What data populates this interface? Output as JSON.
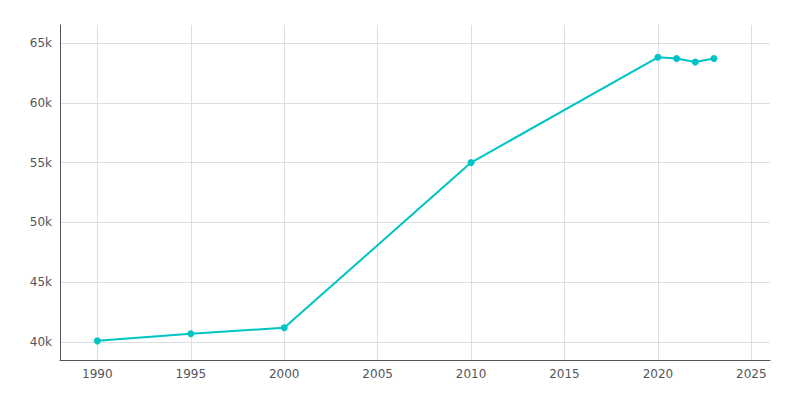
{
  "chart_data": {
    "type": "line",
    "x": [
      1990,
      1995,
      2000,
      2010,
      2020,
      2021,
      2022,
      2023
    ],
    "values": [
      40100,
      40700,
      41200,
      55000,
      63800,
      63700,
      63400,
      63700
    ],
    "color": "#00c4c4",
    "marker": "circle",
    "xlim": [
      1988,
      2026
    ],
    "xticks": [
      1990,
      1995,
      2000,
      2005,
      2010,
      2015,
      2020,
      2025
    ],
    "ylim": [
      38500,
      66500
    ],
    "yticks": [
      {
        "value": 40000,
        "label": "40k"
      },
      {
        "value": 45000,
        "label": "45k"
      },
      {
        "value": 50000,
        "label": "50k"
      },
      {
        "value": 55000,
        "label": "55k"
      },
      {
        "value": 60000,
        "label": "60k"
      },
      {
        "value": 65000,
        "label": "65k"
      }
    ],
    "grid": true
  }
}
